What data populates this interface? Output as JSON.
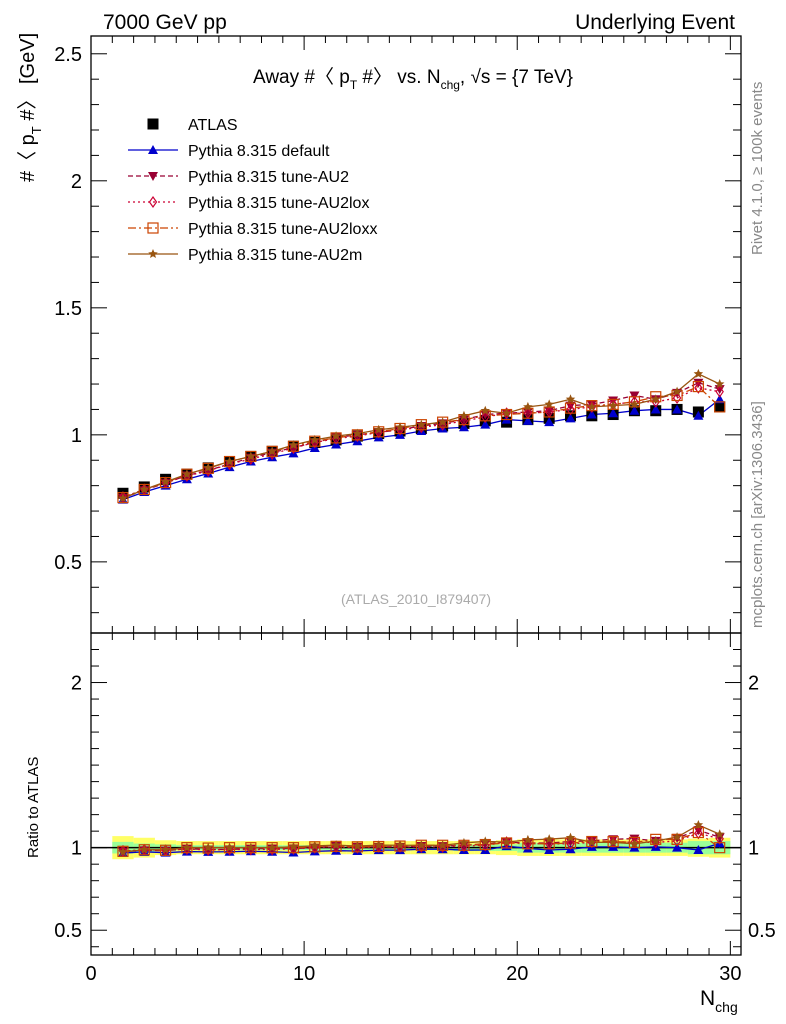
{
  "header": {
    "left": "7000 GeV pp",
    "right": "Underlying Event"
  },
  "side_labels": {
    "rivet": "Rivet 4.1.0, ≥ 100k events",
    "mcplots": "mcplots.cern.ch [arXiv:1306.3436]"
  },
  "chart_data": {
    "type": "line",
    "title": {
      "main": "Away #〈 p",
      "sub1": "T",
      "mid": " #〉 vs. N",
      "sub2": "chg",
      "tail": ", √s = {7 TeV}"
    },
    "ylabel": {
      "main": "#〈 p",
      "sub": "T",
      "tail": " #〉 [GeV]"
    },
    "xlabel": {
      "main": "N",
      "sub": "chg"
    },
    "ratio_ylabel": "Ratio to ATLAS",
    "watermark": "(ATLAS_2010_I879407)",
    "xlim": [
      0,
      30.5
    ],
    "ylim": [
      0.22,
      2.57
    ],
    "ratio_ylim": [
      0.35,
      2.3
    ],
    "xticks": [
      0,
      10,
      20,
      30
    ],
    "xtick_labels": [
      "0",
      "10",
      "20",
      "30"
    ],
    "yticks": [
      0.5,
      1,
      1.5,
      2,
      2.5
    ],
    "ytick_labels": [
      "0.5",
      "1",
      "1.5",
      "2",
      "2.5"
    ],
    "ratio_yticks": [
      0.5,
      1,
      2
    ],
    "ratio_ytick_labels": [
      "0.5",
      "1",
      "2"
    ],
    "x": [
      1.5,
      2.5,
      3.5,
      4.5,
      5.5,
      6.5,
      7.5,
      8.5,
      9.5,
      10.5,
      11.5,
      12.5,
      13.5,
      14.5,
      15.5,
      16.5,
      17.5,
      18.5,
      19.5,
      20.5,
      21.5,
      22.5,
      23.5,
      24.5,
      25.5,
      26.5,
      27.5,
      28.5,
      29.5
    ],
    "series": [
      {
        "name": "ATLAS",
        "color": "#000000",
        "marker": "square-filled",
        "dash": "none",
        "values": [
          0.77,
          0.795,
          0.825,
          0.845,
          0.87,
          0.895,
          0.915,
          0.935,
          0.955,
          0.97,
          0.98,
          0.995,
          1.005,
          1.015,
          1.025,
          1.035,
          1.045,
          1.055,
          1.05,
          1.06,
          1.065,
          1.075,
          1.075,
          1.08,
          1.095,
          1.095,
          1.1,
          1.09,
          1.11
        ]
      },
      {
        "name": "Pythia 8.315 default",
        "color": "#0000cc",
        "marker": "triangle-up",
        "dash": "none",
        "values": [
          0.745,
          0.775,
          0.8,
          0.825,
          0.848,
          0.873,
          0.895,
          0.912,
          0.927,
          0.948,
          0.962,
          0.975,
          0.99,
          1.0,
          1.015,
          1.025,
          1.03,
          1.04,
          1.06,
          1.055,
          1.05,
          1.065,
          1.08,
          1.085,
          1.095,
          1.1,
          1.1,
          1.075,
          1.14
        ]
      },
      {
        "name": "Pythia 8.315 tune-AU2",
        "color": "#990033",
        "marker": "triangle-down",
        "dash": "5,3",
        "values": [
          0.752,
          0.782,
          0.81,
          0.84,
          0.86,
          0.885,
          0.91,
          0.93,
          0.95,
          0.97,
          0.99,
          1.0,
          1.01,
          1.02,
          1.035,
          1.045,
          1.06,
          1.08,
          1.085,
          1.09,
          1.095,
          1.115,
          1.12,
          1.135,
          1.155,
          1.14,
          1.165,
          1.205,
          1.18
        ]
      },
      {
        "name": "Pythia 8.315 tune-AU2lox",
        "color": "#cc0033",
        "marker": "diamond-open",
        "dash": "2,3",
        "values": [
          0.755,
          0.785,
          0.812,
          0.838,
          0.858,
          0.885,
          0.905,
          0.925,
          0.948,
          0.97,
          0.985,
          0.995,
          1.01,
          1.02,
          1.03,
          1.04,
          1.055,
          1.07,
          1.085,
          1.085,
          1.09,
          1.1,
          1.11,
          1.12,
          1.13,
          1.13,
          1.145,
          1.185,
          1.17
        ]
      },
      {
        "name": "Pythia 8.315 tune-AU2loxx",
        "color": "#cc4400",
        "marker": "square-open",
        "dash": "8,3,2,3",
        "values": [
          0.753,
          0.785,
          0.812,
          0.845,
          0.868,
          0.895,
          0.915,
          0.935,
          0.955,
          0.975,
          0.988,
          1.0,
          1.012,
          1.025,
          1.04,
          1.05,
          1.06,
          1.075,
          1.08,
          1.085,
          1.09,
          1.105,
          1.115,
          1.12,
          1.13,
          1.15,
          1.155,
          1.19,
          1.11
        ]
      },
      {
        "name": "Pythia 8.315 tune-AU2m",
        "color": "#995511",
        "marker": "star",
        "dash": "none",
        "values": [
          0.75,
          0.785,
          0.815,
          0.845,
          0.87,
          0.895,
          0.915,
          0.935,
          0.96,
          0.98,
          0.995,
          1.005,
          1.02,
          1.03,
          1.04,
          1.05,
          1.075,
          1.095,
          1.085,
          1.11,
          1.12,
          1.14,
          1.11,
          1.115,
          1.12,
          1.14,
          1.17,
          1.24,
          1.2
        ]
      }
    ],
    "ratio_band_yellow": [
      0.07,
      0.06,
      0.045,
      0.04,
      0.04,
      0.04,
      0.04,
      0.04,
      0.04,
      0.04,
      0.04,
      0.04,
      0.04,
      0.04,
      0.04,
      0.04,
      0.04,
      0.04,
      0.045,
      0.05,
      0.05,
      0.05,
      0.05,
      0.05,
      0.05,
      0.05,
      0.05,
      0.055,
      0.06
    ],
    "ratio_band_green": [
      0.035,
      0.025,
      0.02,
      0.015,
      0.015,
      0.015,
      0.015,
      0.015,
      0.015,
      0.015,
      0.015,
      0.015,
      0.015,
      0.015,
      0.015,
      0.015,
      0.02,
      0.02,
      0.02,
      0.03,
      0.03,
      0.03,
      0.03,
      0.03,
      0.03,
      0.03,
      0.03,
      0.04,
      0.04
    ],
    "colors": {
      "band_yellow": "#ffff66",
      "band_green": "#99ff99"
    }
  }
}
